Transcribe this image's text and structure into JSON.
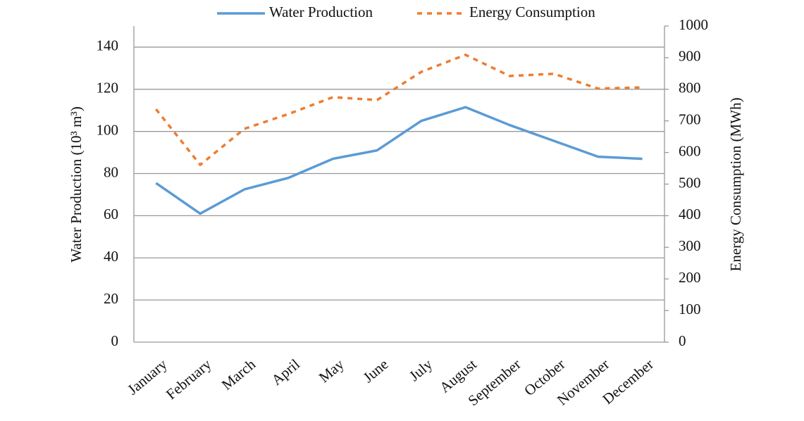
{
  "chart_data": {
    "type": "line",
    "categories": [
      "January",
      "February",
      "March",
      "April",
      "May",
      "June",
      "July",
      "August",
      "September",
      "October",
      "November",
      "December"
    ],
    "series": [
      {
        "name": "Water Production",
        "color": "#5b9bd5",
        "values": [
          75.5,
          61,
          72.5,
          78,
          87,
          91,
          105,
          111.5,
          103,
          95.5,
          88,
          87
        ]
      },
      {
        "name": "Energy Consumption",
        "color": "#ed7d31",
        "axis": "y2",
        "dashed": true,
        "values": [
          737,
          561,
          675,
          722,
          775,
          766,
          855,
          909,
          842,
          849,
          802,
          806
        ]
      }
    ],
    "y_label": "Water Production (10³ m³)",
    "y2_label": "Energy Consumption (MWh)",
    "ylim": [
      0,
      150
    ],
    "yticks": [
      0,
      20,
      40,
      60,
      80,
      100,
      120,
      140
    ],
    "y2lim": [
      0,
      1000
    ],
    "y2ticks": [
      0,
      100,
      200,
      300,
      400,
      500,
      600,
      700,
      800,
      900,
      1000
    ],
    "grid": true,
    "legend": "top"
  }
}
